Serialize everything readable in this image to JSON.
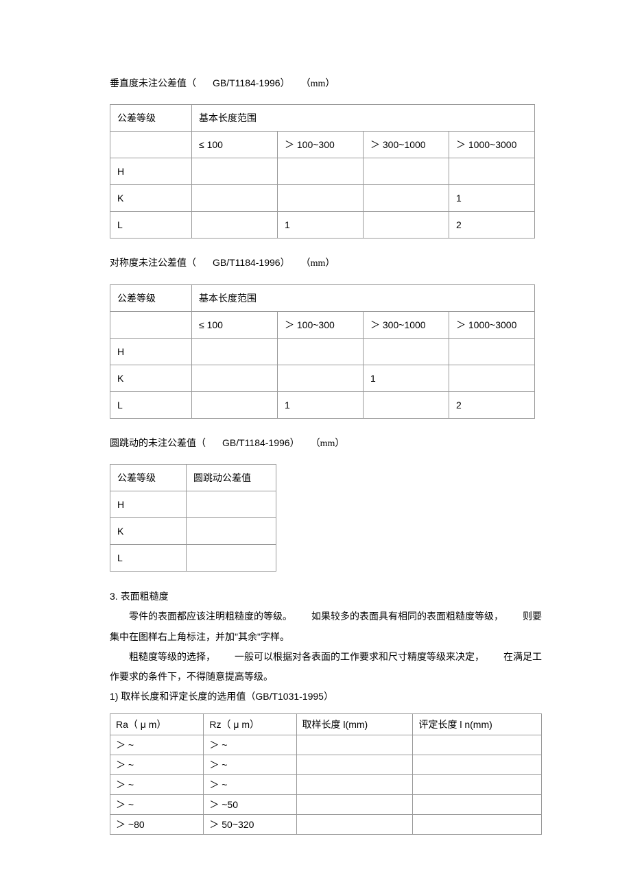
{
  "section1": {
    "title_pre": "垂直度未注公差值（",
    "title_std": "GB/T1184-1996",
    "title_mid": "）",
    "title_unit": "（mm）",
    "header_label": "公差等级",
    "header_range": "基本长度范围",
    "ranges": [
      "≤ 100",
      "＞ 100~300",
      "＞ 300~1000",
      "＞ 1000~3000"
    ],
    "rows": [
      {
        "label": "H",
        "cells": [
          "",
          "",
          "",
          ""
        ]
      },
      {
        "label": "K",
        "cells": [
          "",
          "",
          "",
          "1"
        ]
      },
      {
        "label": "L",
        "cells": [
          "",
          "1",
          "",
          "2"
        ]
      }
    ]
  },
  "section2": {
    "title_pre": "对称度未注公差值（",
    "title_std": "GB/T1184-1996",
    "title_mid": "）",
    "title_unit": "（mm）",
    "header_label": "公差等级",
    "header_range": "基本长度范围",
    "ranges": [
      "≤ 100",
      "＞ 100~300",
      "＞ 300~1000",
      "＞ 1000~3000"
    ],
    "rows": [
      {
        "label": "H",
        "cells": [
          "",
          "",
          "",
          ""
        ]
      },
      {
        "label": "K",
        "cells": [
          "",
          "",
          "1",
          ""
        ]
      },
      {
        "label": "L",
        "cells": [
          "",
          "1",
          "",
          "2"
        ]
      }
    ]
  },
  "section3": {
    "title_pre": "圆跳动的未注公差值（",
    "title_std": "GB/T1184-1996",
    "title_mid": "）",
    "title_unit": "（mm）",
    "header_label": "公差等级",
    "header_val": "圆跳动公差值",
    "rows": [
      {
        "label": "H",
        "val": ""
      },
      {
        "label": "K",
        "val": ""
      },
      {
        "label": "L",
        "val": ""
      }
    ]
  },
  "section4": {
    "h": "3. 表面粗糙度",
    "p1a": "零件的表面都应该注明粗糙度的等级。",
    "p1b": "如果较多的表面具有相同的表面粗糙度等级，",
    "p1c": "则要",
    "p2": "集中在图样右上角标注，并加\"其余\"字样。",
    "p3a": "粗糙度等级的选择，",
    "p3b": "一般可以根据对各表面的工作要求和尺寸精度等级来决定，",
    "p3c": "在满足工",
    "p4": "作要求的条件下，不得随意提高等级。",
    "p5a": "1) 取样长度和评定长度的选用值（",
    "p5b": "GB/T1031-1995",
    "p5c": "）"
  },
  "table4": {
    "headers": [
      "Ra（ μ m）",
      "Rz（ μ m）",
      "取样长度  l(mm)",
      "评定长度  l n(mm)"
    ],
    "rows": [
      [
        "＞ ~",
        "＞ ~",
        "",
        ""
      ],
      [
        "＞ ~",
        "＞ ~",
        "",
        ""
      ],
      [
        "＞ ~",
        "＞ ~",
        "",
        ""
      ],
      [
        "＞ ~",
        "＞ ~50",
        "",
        ""
      ],
      [
        "＞ ~80",
        "＞ 50~320",
        "",
        ""
      ]
    ]
  }
}
